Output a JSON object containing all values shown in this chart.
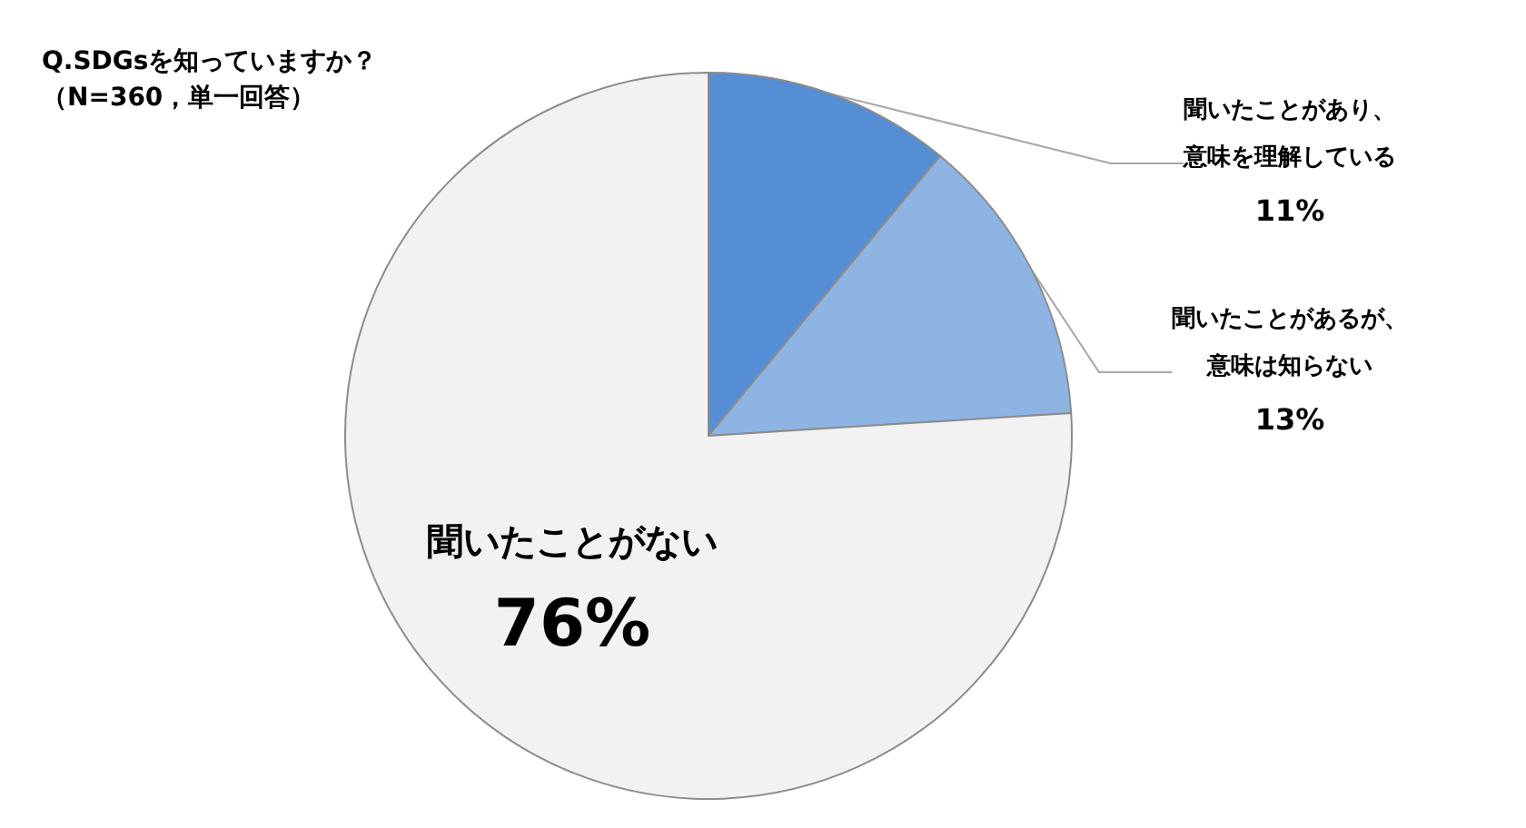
{
  "chart_data": {
    "type": "pie",
    "title": "Q.SDGsを知っていますか？",
    "subtitle": "（N=360，単一回答）",
    "categories": [
      "聞いたことがあり、意味を理解している",
      "聞いたことがあるが、意味は知らない",
      "聞いたことがない"
    ],
    "values": [
      11,
      13,
      76
    ],
    "value_labels": [
      "11%",
      "13%",
      "76%"
    ],
    "colors": [
      "#558ed5",
      "#8eb4e3",
      "#f2f2f2"
    ],
    "data_labels": true,
    "legend": false
  }
}
